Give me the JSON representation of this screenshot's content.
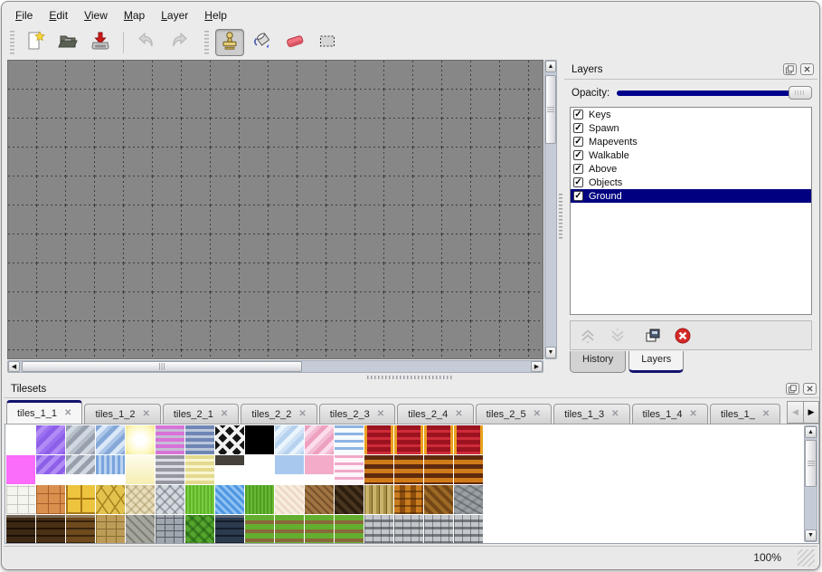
{
  "menu": {
    "items": [
      "File",
      "Edit",
      "View",
      "Map",
      "Layer",
      "Help"
    ]
  },
  "toolbar": {
    "tools": [
      {
        "name": "new-document"
      },
      {
        "name": "open-map"
      },
      {
        "name": "save-map"
      },
      {
        "name": "undo",
        "disabled": true
      },
      {
        "name": "redo",
        "disabled": true
      },
      {
        "name": "stamp-tool",
        "selected": true
      },
      {
        "name": "fill-tool"
      },
      {
        "name": "eraser-tool"
      },
      {
        "name": "rect-select-tool"
      }
    ]
  },
  "side_panel": {
    "title": "Layers",
    "opacity_label": "Opacity:",
    "opacity_percent": 100,
    "layers": [
      {
        "label": "Keys",
        "checked": true
      },
      {
        "label": "Spawn",
        "checked": true
      },
      {
        "label": "Mapevents",
        "checked": true
      },
      {
        "label": "Walkable",
        "checked": true
      },
      {
        "label": "Above",
        "checked": true
      },
      {
        "label": "Objects",
        "checked": true
      },
      {
        "label": "Ground",
        "checked": true,
        "selected": true
      }
    ],
    "tabs": [
      {
        "label": "History",
        "active": false
      },
      {
        "label": "Layers",
        "active": true
      }
    ]
  },
  "tilesets": {
    "title": "Tilesets",
    "tabs": [
      {
        "label": "tiles_1_1",
        "active": true
      },
      {
        "label": "tiles_1_2"
      },
      {
        "label": "tiles_2_1"
      },
      {
        "label": "tiles_2_2"
      },
      {
        "label": "tiles_2_3"
      },
      {
        "label": "tiles_2_4"
      },
      {
        "label": "tiles_2_5"
      },
      {
        "label": "tiles_1_3"
      },
      {
        "label": "tiles_1_4"
      },
      {
        "label": "tiles_1_",
        "clipped": true
      }
    ],
    "tile_grid": [
      [
        "empty",
        "purple-glass",
        "silver-glass",
        "blue-glass",
        "yellow-glow",
        "orchid-stripes",
        "bluegray-stripes",
        "white-lattice",
        "black",
        "sky-glass",
        "pink-glass",
        "blue-wave",
        "red-curtain",
        "red-curtain",
        "red-curtain",
        "red-curtain"
      ],
      [
        "magenta",
        "purple-glass-sm",
        "silver-glass-sm",
        "water-sm",
        "pale-yellow",
        "gray-stripes",
        "yellow-stripes",
        "dark-sign",
        "empty",
        "sky-blue-sm",
        "pink-sm",
        "pink-wave",
        "orange-stripes",
        "orange-stripes",
        "orange-stripes",
        "orange-stripes"
      ],
      [
        "white-stone",
        "orange-flagstone",
        "gold-tile",
        "yellow-stone",
        "pebbles",
        "gray-stones",
        "grass-bright",
        "water",
        "grass",
        "sand",
        "dirt",
        "dark-shingle",
        "planks",
        "basket-weave",
        "herringbone",
        "log-ends"
      ],
      [
        "dark-brick",
        "dark-brick2",
        "brown-brick",
        "tan-wall",
        "gray-stone-wall",
        "gray-brick",
        "hedge",
        "blue-brick",
        "grass-dirt",
        "grass-dirt",
        "grass-dirt",
        "grass-dirt",
        "stone-brick",
        "stone-brick",
        "stone-brick",
        "stone-brick"
      ]
    ]
  },
  "statusbar": {
    "zoom_text": "100%"
  },
  "colors": {
    "selection": "#000080",
    "opacity_fill": "#00008b",
    "tab_accent": "#13136e",
    "canvas_bg": "#878787",
    "grid_line": "#3e3e3e"
  }
}
